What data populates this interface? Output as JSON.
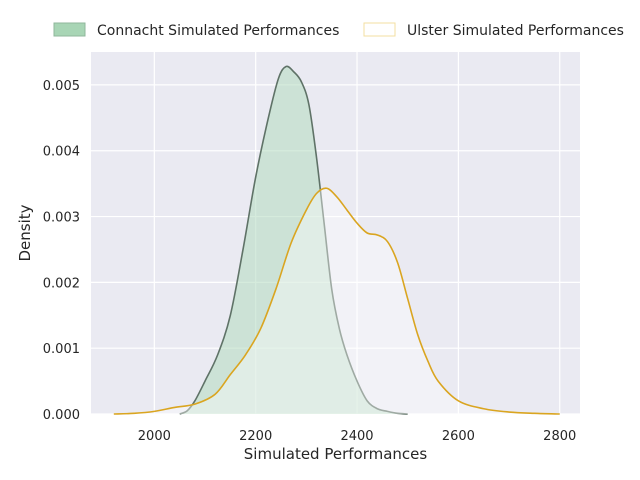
{
  "chart_data": {
    "type": "area",
    "title": "",
    "xlabel": "Simulated Performances",
    "ylabel": "Density",
    "xlim": [
      1875,
      2840
    ],
    "ylim": [
      0,
      0.0055
    ],
    "x_ticks": [
      2000,
      2200,
      2400,
      2600,
      2800
    ],
    "y_ticks": [
      0.0,
      0.001,
      0.002,
      0.003,
      0.004,
      0.005
    ],
    "x_tick_labels": [
      "2000",
      "2200",
      "2400",
      "2600",
      "2800"
    ],
    "y_tick_labels": [
      "0.000",
      "0.001",
      "0.002",
      "0.003",
      "0.004",
      "0.005"
    ],
    "grid": true,
    "legend_position": "top",
    "series": [
      {
        "name": "Connacht Simulated Performances",
        "fill": true,
        "fill_color": "#b3dbbf",
        "line_color": "#5f7267",
        "legend_color": "#a8d5b5",
        "points": [
          [
            2050,
            0.0
          ],
          [
            2065,
            5e-05
          ],
          [
            2080,
            0.0002
          ],
          [
            2100,
            0.0005
          ],
          [
            2125,
            0.0009
          ],
          [
            2150,
            0.0015
          ],
          [
            2175,
            0.0025
          ],
          [
            2200,
            0.0036
          ],
          [
            2225,
            0.0045
          ],
          [
            2245,
            0.0051
          ],
          [
            2260,
            0.00528
          ],
          [
            2275,
            0.0052
          ],
          [
            2290,
            0.00505
          ],
          [
            2305,
            0.0047
          ],
          [
            2320,
            0.0039
          ],
          [
            2335,
            0.0029
          ],
          [
            2350,
            0.0019
          ],
          [
            2365,
            0.0013
          ],
          [
            2380,
            0.0009
          ],
          [
            2400,
            0.0005
          ],
          [
            2420,
            0.0002
          ],
          [
            2440,
            8e-05
          ],
          [
            2460,
            4e-05
          ],
          [
            2480,
            1e-05
          ],
          [
            2500,
            0.0
          ]
        ]
      },
      {
        "name": "Ulster Simulated Performances",
        "fill": false,
        "fill_color": "#ffffff",
        "line_color": "#daa520",
        "legend_color": "#f3dfa0",
        "points": [
          [
            1920,
            0.0
          ],
          [
            1960,
            1e-05
          ],
          [
            2000,
            4e-05
          ],
          [
            2040,
            0.0001
          ],
          [
            2080,
            0.00015
          ],
          [
            2120,
            0.0003
          ],
          [
            2150,
            0.0006
          ],
          [
            2180,
            0.0009
          ],
          [
            2210,
            0.0013
          ],
          [
            2240,
            0.0019
          ],
          [
            2270,
            0.0026
          ],
          [
            2300,
            0.0031
          ],
          [
            2320,
            0.00335
          ],
          [
            2340,
            0.00343
          ],
          [
            2360,
            0.0033
          ],
          [
            2380,
            0.0031
          ],
          [
            2400,
            0.0029
          ],
          [
            2420,
            0.00275
          ],
          [
            2440,
            0.00272
          ],
          [
            2460,
            0.00262
          ],
          [
            2480,
            0.0023
          ],
          [
            2500,
            0.00175
          ],
          [
            2520,
            0.0012
          ],
          [
            2540,
            0.0008
          ],
          [
            2560,
            0.0005
          ],
          [
            2600,
            0.0002
          ],
          [
            2650,
            8e-05
          ],
          [
            2700,
            3e-05
          ],
          [
            2750,
            1e-05
          ],
          [
            2800,
            0.0
          ]
        ]
      }
    ]
  }
}
